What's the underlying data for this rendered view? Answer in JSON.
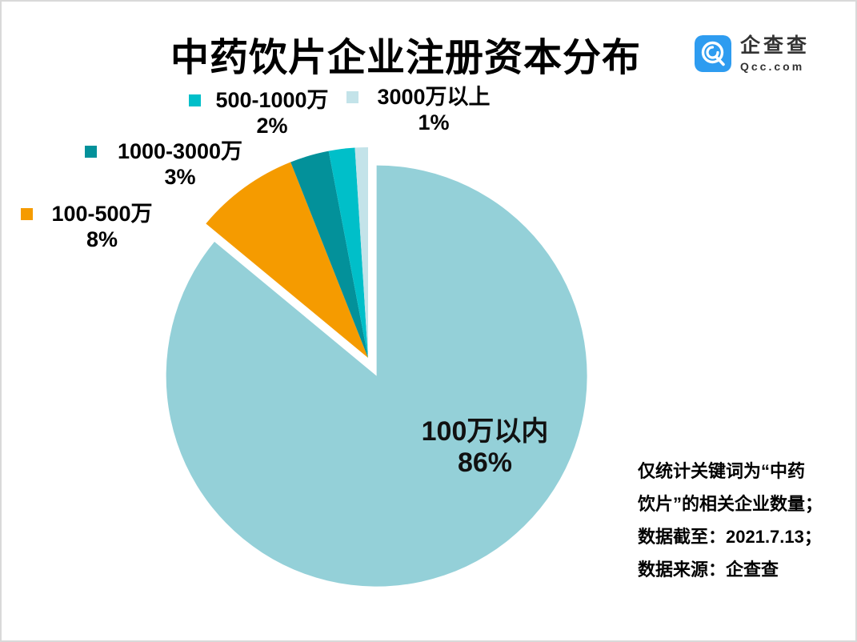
{
  "header": {
    "title": "中药饮片企业注册资本分布",
    "logo": {
      "name": "企查查",
      "domain": "Qcc.com",
      "brand_color": "#2E9CF0",
      "icon": "qcc-q-spiral-icon"
    }
  },
  "chart_data": {
    "type": "pie",
    "title": "中药饮片企业注册资本分布",
    "unit": "%",
    "direction": "clockwise",
    "start_angle_deg": 0,
    "legend_position": "outside-data-labels",
    "slices": [
      {
        "label": "100万以内",
        "value": 86,
        "pct": "86%",
        "color": "#94D0D8",
        "exploded": true,
        "label_inside": true
      },
      {
        "label": "100-500万",
        "value": 8,
        "pct": "8%",
        "color": "#F59B00"
      },
      {
        "label": "1000-3000万",
        "value": 3,
        "pct": "3%",
        "color": "#03919A"
      },
      {
        "label": "500-1000万",
        "value": 2,
        "pct": "2%",
        "color": "#00BFC9"
      },
      {
        "label": "3000万以上",
        "value": 1,
        "pct": "1%",
        "color": "#C3E3E9"
      }
    ]
  },
  "annotation": {
    "lines": [
      "仅统计关键词为“中药",
      "饮片”的相关企业数量；",
      "数据截至：2021.7.13；",
      "数据来源：企查查"
    ]
  }
}
